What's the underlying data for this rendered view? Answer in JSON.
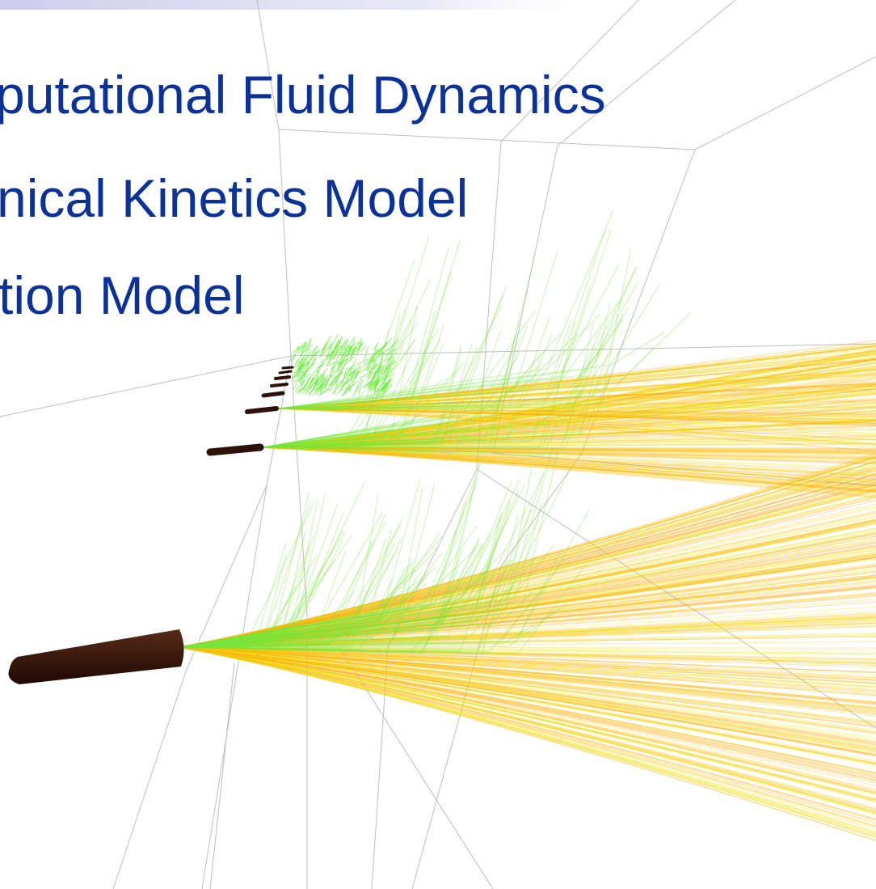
{
  "slide": {
    "lines": [
      "putational Fluid Dynamics",
      "nical Kinetics Model",
      "tion Model"
    ]
  }
}
